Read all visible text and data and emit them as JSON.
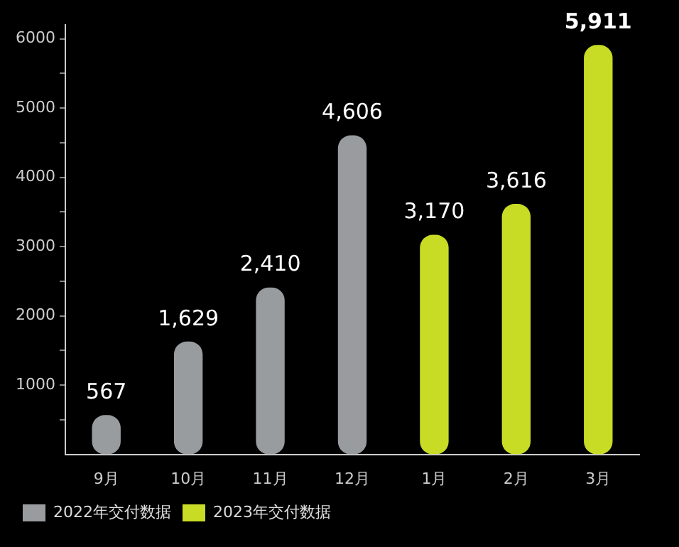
{
  "chart_data": {
    "type": "bar",
    "categories": [
      "9月",
      "10月",
      "11月",
      "12月",
      "1月",
      "2月",
      "3月"
    ],
    "series": [
      {
        "name": "2022年交付数据",
        "color": "#999c9f",
        "values": [
          567,
          1629,
          2410,
          4606,
          null,
          null,
          null
        ],
        "value_labels": [
          "567",
          "1,629",
          "2,410",
          "4,606",
          null,
          null,
          null
        ]
      },
      {
        "name": "2023年交付数据",
        "color": "#c8dc26",
        "values": [
          null,
          null,
          null,
          null,
          3170,
          3616,
          5911
        ],
        "value_labels": [
          null,
          null,
          null,
          null,
          "3,170",
          "3,616",
          "5,911"
        ]
      }
    ],
    "ylim": [
      0,
      6200
    ],
    "yticks": [
      {
        "value": 500,
        "label": null
      },
      1000,
      {
        "value": 1500,
        "label": null
      },
      2000,
      {
        "value": 2500,
        "label": null
      },
      3000,
      {
        "value": 3500,
        "label": null
      },
      4000,
      {
        "value": 4500,
        "label": null
      },
      5000,
      {
        "value": 5500,
        "label": null
      },
      6000
    ],
    "grid": false,
    "legend": "bottom left"
  }
}
